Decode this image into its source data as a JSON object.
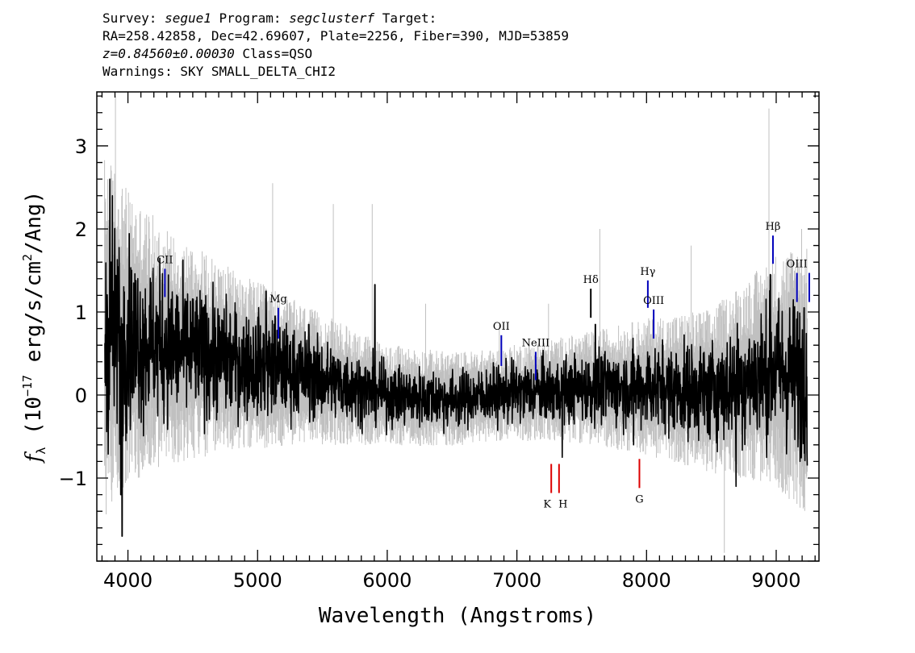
{
  "header": {
    "line1_pre": "Survey: ",
    "survey": "segue1",
    "line1_mid": " Program: ",
    "program": "segclusterf",
    "line1_post": " Target:",
    "line2": "RA=258.42858, Dec=42.69607, Plate=2256, Fiber=390, MJD=53859",
    "redshift": "z=0.84560±0.00030",
    "line3_post": " Class=QSO",
    "line4": "Warnings: SKY SMALL_DELTA_CHI2"
  },
  "chart_data": {
    "type": "line",
    "xlabel": "Wavelength (Angstroms)",
    "ylabel": "f_λ (10^-17 erg/s/cm^2/Ang)",
    "ylabel_parts": {
      "sym": "f",
      "sub": "λ",
      "pre": " (10",
      "exp1": "−17",
      "mid": " erg/s/cm",
      "exp2": "2",
      "post": "/Ang)"
    },
    "xlim": [
      3760,
      9330
    ],
    "ylim": [
      -2.0,
      3.65
    ],
    "x_ticks": [
      4000,
      5000,
      6000,
      7000,
      8000,
      9000
    ],
    "x_tick_labels": [
      "4000",
      "5000",
      "6000",
      "7000",
      "8000",
      "9000"
    ],
    "y_ticks": [
      -1,
      0,
      1,
      2,
      3
    ],
    "y_tick_labels": [
      "−1",
      "0",
      "1",
      "2",
      "3"
    ],
    "colors": {
      "flux": "#000000",
      "error": "#c0c0c0",
      "emission": "#0000bb",
      "absorption": "#dd0000",
      "strong": "#000000"
    },
    "series": [
      {
        "name": "flux",
        "style": "noisy-spectrum",
        "envelope": [
          {
            "x": 3820,
            "y": 0.7
          },
          {
            "x": 3900,
            "y": 0.75
          },
          {
            "x": 4100,
            "y": 0.65
          },
          {
            "x": 4400,
            "y": 0.55
          },
          {
            "x": 4800,
            "y": 0.42
          },
          {
            "x": 5200,
            "y": 0.3
          },
          {
            "x": 5600,
            "y": 0.15
          },
          {
            "x": 6000,
            "y": 0.0
          },
          {
            "x": 6500,
            "y": -0.05
          },
          {
            "x": 7000,
            "y": 0.03
          },
          {
            "x": 7500,
            "y": 0.08
          },
          {
            "x": 8000,
            "y": 0.1
          },
          {
            "x": 8500,
            "y": 0.05
          },
          {
            "x": 9000,
            "y": 0.3
          },
          {
            "x": 9240,
            "y": 0.2
          }
        ],
        "spikes": [
          {
            "x": 3860,
            "y": 2.6
          },
          {
            "x": 3880,
            "y": 2.4
          },
          {
            "x": 3945,
            "y": -1.2
          },
          {
            "x": 3955,
            "y": -1.7
          },
          {
            "x": 5065,
            "y": 1.25
          },
          {
            "x": 5135,
            "y": 0.95
          },
          {
            "x": 5395,
            "y": 0.85
          },
          {
            "x": 5905,
            "y": 1.33
          },
          {
            "x": 6960,
            "y": 0.45
          },
          {
            "x": 7350,
            "y": -0.75
          },
          {
            "x": 7605,
            "y": 0.85
          },
          {
            "x": 7900,
            "y": -0.6
          },
          {
            "x": 8125,
            "y": 0.6
          },
          {
            "x": 8690,
            "y": -1.1
          },
          {
            "x": 8955,
            "y": 1.45
          },
          {
            "x": 9215,
            "y": 1.05
          },
          {
            "x": 9240,
            "y": -0.85
          }
        ]
      },
      {
        "name": "error",
        "style": "noise-band",
        "envelope": [
          {
            "x": 3820,
            "y": 2.0
          },
          {
            "x": 4000,
            "y": 1.6
          },
          {
            "x": 4300,
            "y": 1.3
          },
          {
            "x": 4800,
            "y": 1.0
          },
          {
            "x": 5400,
            "y": 0.75
          },
          {
            "x": 6000,
            "y": 0.55
          },
          {
            "x": 6800,
            "y": 0.5
          },
          {
            "x": 7500,
            "y": 0.6
          },
          {
            "x": 8000,
            "y": 0.75
          },
          {
            "x": 8500,
            "y": 0.9
          },
          {
            "x": 8900,
            "y": 1.2
          },
          {
            "x": 9240,
            "y": 1.5
          }
        ],
        "spikes": [
          {
            "x": 3870,
            "y": 3.6
          },
          {
            "x": 3905,
            "y": 3.6
          },
          {
            "x": 4310,
            "y": 1.55
          },
          {
            "x": 5115,
            "y": 2.55
          },
          {
            "x": 5585,
            "y": 2.3
          },
          {
            "x": 5885,
            "y": 2.3
          },
          {
            "x": 6295,
            "y": 1.1
          },
          {
            "x": 6865,
            "y": 0.85
          },
          {
            "x": 7245,
            "y": 1.1
          },
          {
            "x": 7640,
            "y": 2.0
          },
          {
            "x": 8345,
            "y": 1.8
          },
          {
            "x": 8890,
            "y": 2.45
          },
          {
            "x": 8945,
            "y": 3.45
          },
          {
            "x": 9195,
            "y": 2.0
          },
          {
            "x": 3950,
            "y": -1.9
          },
          {
            "x": 8350,
            "y": -1.9
          },
          {
            "x": 8600,
            "y": -1.9
          }
        ]
      }
    ],
    "line_markers": [
      {
        "label": "CII",
        "x": 4285,
        "y1": 1.18,
        "y2": 1.52,
        "color": "emission"
      },
      {
        "label": "Mg",
        "x": 5160,
        "y1": 0.68,
        "y2": 1.05,
        "color": "emission"
      },
      {
        "label": "OII",
        "x": 6880,
        "y1": 0.35,
        "y2": 0.72,
        "color": "emission"
      },
      {
        "label": "NeIII",
        "x": 7145,
        "y1": 0.18,
        "y2": 0.52,
        "color": "emission"
      },
      {
        "label": "Hδ",
        "x": 7570,
        "y1": 0.93,
        "y2": 1.28,
        "color": "strong"
      },
      {
        "label": "Hγ",
        "x": 8010,
        "y1": 1.05,
        "y2": 1.38,
        "color": "emission"
      },
      {
        "label": "OIII",
        "x": 8055,
        "y1": 0.68,
        "y2": 1.03,
        "color": "emission"
      },
      {
        "label": "Hβ",
        "x": 8975,
        "y1": 1.58,
        "y2": 1.92,
        "color": "emission"
      },
      {
        "label": "OIII",
        "x": 9160,
        "y1": 1.12,
        "y2": 1.47,
        "color": "emission"
      },
      {
        "label": "",
        "x": 9255,
        "y1": 1.12,
        "y2": 1.47,
        "color": "emission"
      },
      {
        "label": "K",
        "x": 7265,
        "y1": -1.18,
        "y2": -0.83,
        "color": "absorption"
      },
      {
        "label": "H",
        "x": 7325,
        "y1": -1.18,
        "y2": -0.83,
        "color": "absorption"
      },
      {
        "label": "G",
        "x": 7945,
        "y1": -1.12,
        "y2": -0.77,
        "color": "absorption"
      }
    ],
    "grid": false
  }
}
